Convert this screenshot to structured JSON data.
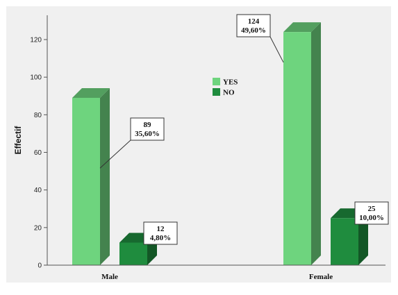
{
  "chart_data": {
    "type": "bar",
    "ylabel": "Effectif",
    "xlabel": "",
    "ylim": [
      0,
      130
    ],
    "yticks": [
      0,
      20,
      40,
      60,
      80,
      100,
      120
    ],
    "categories": [
      "Male",
      "Female"
    ],
    "grid": false,
    "legend_position": "center",
    "series": [
      {
        "name": "YES",
        "color": "#6ed47e",
        "values": [
          89,
          124
        ],
        "percent_labels": [
          "35,60%",
          "49,60%"
        ]
      },
      {
        "name": "NO",
        "color": "#1f8c3e",
        "values": [
          12,
          25
        ],
        "percent_labels": [
          "4,80%",
          "10,00%"
        ]
      }
    ]
  }
}
